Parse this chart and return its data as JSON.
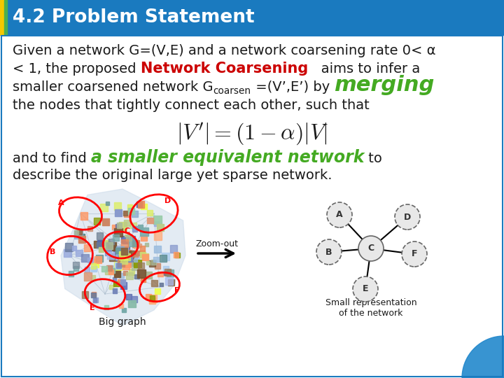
{
  "title": "4.2 Problem Statement",
  "title_bg_color": "#1a7abf",
  "title_text_color": "#ffffff",
  "body_bg_color": "#ffffff",
  "border_color": "#1a7abf",
  "text_color": "#1a1a1a",
  "red_color": "#cc0000",
  "green_color": "#44aa22",
  "font_size_body": 14,
  "font_size_title": 19,
  "font_size_merging": 22,
  "font_size_network": 17,
  "line1": "Given a network G=(V,E) and a network coarsening rate 0< α",
  "line2_pre": "< 1, the proposed ",
  "line2_red": "Network Coarsening",
  "line2_post": "   aims to infer a",
  "line3_pre": "smaller coarsened network G",
  "line3_sub": "coarsen",
  "line3_post": " =(V’,E’) by ",
  "line3_green": "merging",
  "line4": "the nodes that tightly connect each other, such that",
  "line5_pre": "and to find ",
  "line5_green": "a smaller equivalent network",
  "line5_post": " to",
  "line6": "describe the original large yet sparse network.",
  "zoom_label": "Zoom-out",
  "big_graph_label": "Big graph",
  "small_graph_label": "Small representation\nof the network",
  "accent_yellow": "#f5c800",
  "accent_green": "#4caf50",
  "curl_color": "#2288cc"
}
